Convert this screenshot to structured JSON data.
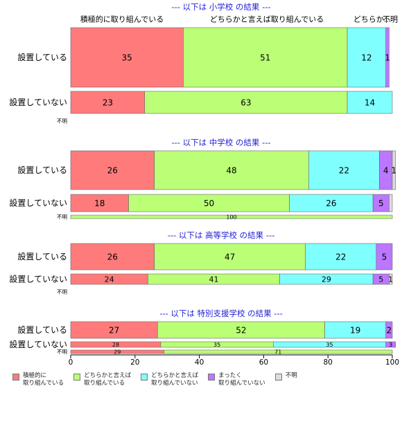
{
  "chart_data": {
    "type": "bar",
    "orientation": "horizontal-stacked-percent",
    "xlim": [
      0,
      100
    ],
    "x_ticks": [
      "0",
      "20",
      "40",
      "60",
      "80",
      "100"
    ],
    "categories": [
      "積極的に\n取り組んでいる",
      "どちらかと言えば\n取り組んでいる",
      "どちらかと言えば\n取り組んでいない",
      "まったく\n取り組んでいない",
      "不明"
    ],
    "colors": [
      "#ff7b7b",
      "#bbff77",
      "#80ffff",
      "#bb77ff",
      "#dddddd"
    ],
    "top_header_labels": [
      "積極的に取り組んでいる",
      "どちらかと言えば取り組んでいる",
      "どちらか...",
      "不明"
    ],
    "panels": [
      {
        "title": "--- 以下は 小学校 の結果 ---",
        "rows": [
          {
            "label": "設置している",
            "values": [
              35,
              51,
              12,
              1,
              0
            ],
            "labels": [
              "35",
              "51",
              "12",
              "1",
              ""
            ]
          },
          {
            "label": "設置していない",
            "values": [
              23,
              63,
              14,
              0,
              0
            ],
            "labels": [
              "23",
              "63",
              "14",
              "",
              ""
            ]
          },
          {
            "label": "不明",
            "values": [],
            "labels": []
          }
        ]
      },
      {
        "title": "--- 以下は 中学校 の結果 ---",
        "rows": [
          {
            "label": "設置している",
            "values": [
              26,
              48,
              22,
              4,
              1
            ],
            "labels": [
              "26",
              "48",
              "22",
              "4",
              "1"
            ]
          },
          {
            "label": "設置していない",
            "values": [
              18,
              50,
              26,
              5,
              1
            ],
            "labels": [
              "18",
              "50",
              "26",
              "5",
              ""
            ]
          },
          {
            "label": "不明",
            "values": [
              0,
              100,
              0,
              0,
              0
            ],
            "labels": [
              "",
              "100",
              "",
              "",
              ""
            ]
          }
        ]
      },
      {
        "title": "--- 以下は 高等学校 の結果 ---",
        "rows": [
          {
            "label": "設置している",
            "values": [
              26,
              47,
              22,
              5,
              0
            ],
            "labels": [
              "26",
              "47",
              "22",
              "5",
              ""
            ]
          },
          {
            "label": "設置していない",
            "values": [
              24,
              41,
              29,
              5,
              1
            ],
            "labels": [
              "24",
              "41",
              "29",
              "5",
              "1"
            ]
          },
          {
            "label": "不明",
            "values": [],
            "labels": []
          }
        ]
      },
      {
        "title": "--- 以下は 特別支援学校 の結果 ---",
        "rows": [
          {
            "label": "設置している",
            "values": [
              27,
              52,
              19,
              2,
              0
            ],
            "labels": [
              "27",
              "52",
              "19",
              "2",
              ""
            ]
          },
          {
            "label": "設置していない",
            "values": [
              28,
              35,
              35,
              3,
              0
            ],
            "labels": [
              "28",
              "35",
              "35",
              "3",
              ""
            ]
          },
          {
            "label": "不明",
            "values": [
              29,
              71,
              0,
              0,
              0
            ],
            "labels": [
              "29",
              "71",
              "",
              "",
              ""
            ]
          }
        ]
      }
    ]
  }
}
